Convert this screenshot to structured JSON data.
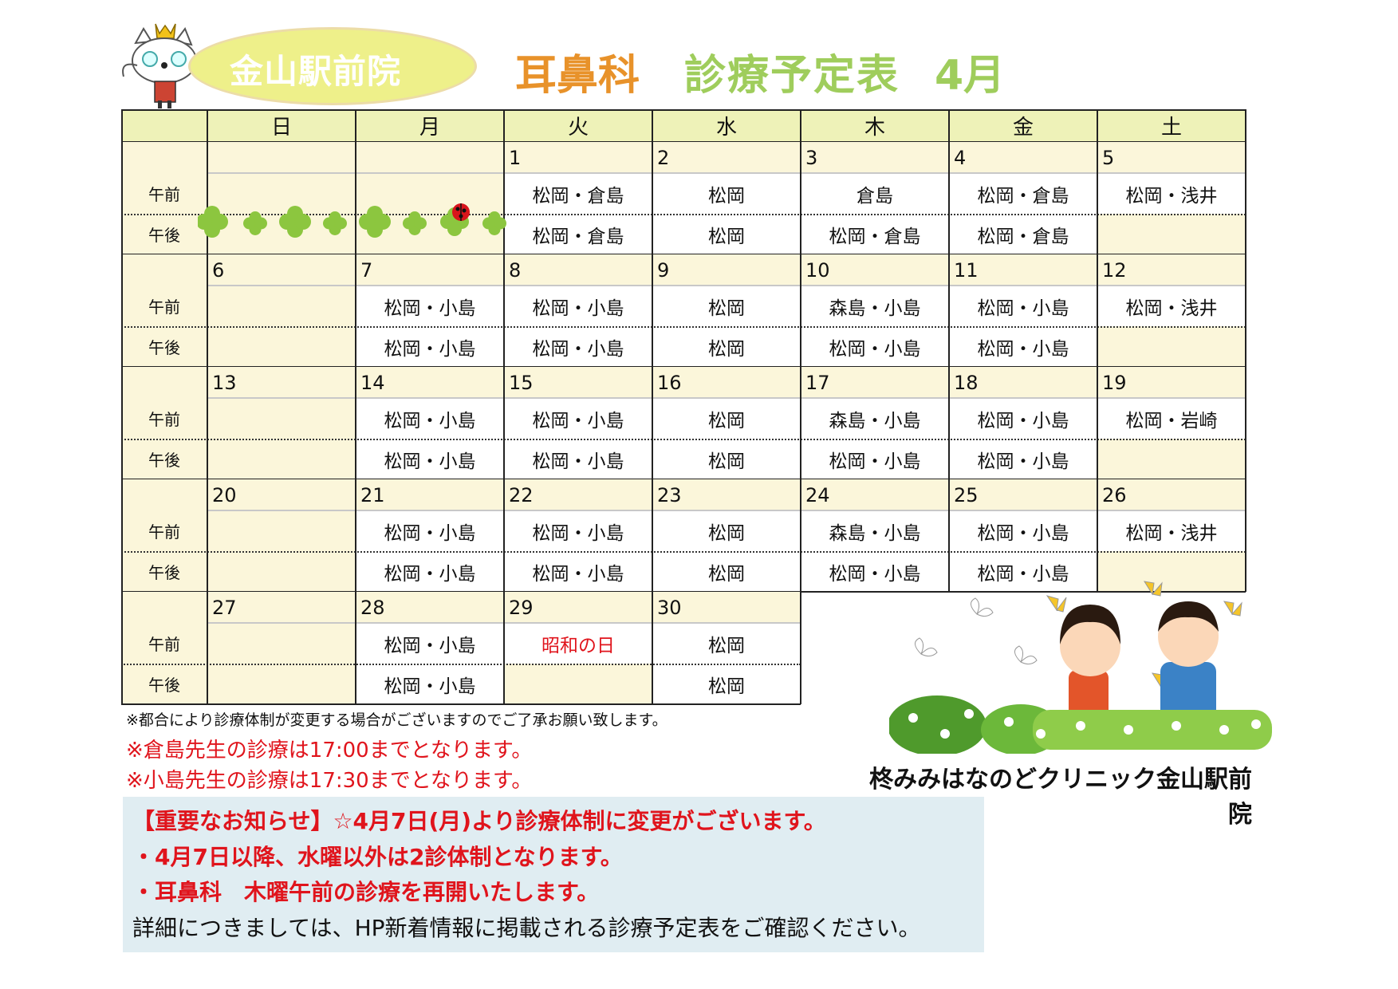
{
  "header": {
    "clinic_branch": "金山駅前院",
    "department": "耳鼻科",
    "title": "診療予定表",
    "month": "4月",
    "colors": {
      "department": "#e8922a",
      "title": "#9fcd5c",
      "branch_bubble": "#eef08a"
    }
  },
  "calendar": {
    "weekdays": [
      "日",
      "月",
      "火",
      "水",
      "木",
      "金",
      "土"
    ],
    "am_label": "午前",
    "pm_label": "午後",
    "weeks": [
      [
        {
          "date": "",
          "am": "",
          "pm": "",
          "decor": "clover"
        },
        {
          "date": "",
          "am": "",
          "pm": "",
          "decor": "clover"
        },
        {
          "date": "1",
          "am": "松岡・倉島",
          "pm": "松岡・倉島"
        },
        {
          "date": "2",
          "am": "松岡",
          "pm": "松岡"
        },
        {
          "date": "3",
          "am": "倉島",
          "pm": "松岡・倉島"
        },
        {
          "date": "4",
          "am": "松岡・倉島",
          "pm": "松岡・倉島"
        },
        {
          "date": "5",
          "am": "松岡・浅井",
          "pm": ""
        }
      ],
      [
        {
          "date": "6",
          "am": "",
          "pm": ""
        },
        {
          "date": "7",
          "am": "松岡・小島",
          "pm": "松岡・小島"
        },
        {
          "date": "8",
          "am": "松岡・小島",
          "pm": "松岡・小島"
        },
        {
          "date": "9",
          "am": "松岡",
          "pm": "松岡"
        },
        {
          "date": "10",
          "am": "森島・小島",
          "pm": "松岡・小島"
        },
        {
          "date": "11",
          "am": "松岡・小島",
          "pm": "松岡・小島"
        },
        {
          "date": "12",
          "am": "松岡・浅井",
          "pm": ""
        }
      ],
      [
        {
          "date": "13",
          "am": "",
          "pm": ""
        },
        {
          "date": "14",
          "am": "松岡・小島",
          "pm": "松岡・小島"
        },
        {
          "date": "15",
          "am": "松岡・小島",
          "pm": "松岡・小島"
        },
        {
          "date": "16",
          "am": "松岡",
          "pm": "松岡"
        },
        {
          "date": "17",
          "am": "森島・小島",
          "pm": "松岡・小島"
        },
        {
          "date": "18",
          "am": "松岡・小島",
          "pm": "松岡・小島"
        },
        {
          "date": "19",
          "am": "松岡・岩崎",
          "pm": ""
        }
      ],
      [
        {
          "date": "20",
          "am": "",
          "pm": ""
        },
        {
          "date": "21",
          "am": "松岡・小島",
          "pm": "松岡・小島"
        },
        {
          "date": "22",
          "am": "松岡・小島",
          "pm": "松岡・小島"
        },
        {
          "date": "23",
          "am": "松岡",
          "pm": "松岡"
        },
        {
          "date": "24",
          "am": "森島・小島",
          "pm": "松岡・小島"
        },
        {
          "date": "25",
          "am": "松岡・小島",
          "pm": "松岡・小島"
        },
        {
          "date": "26",
          "am": "松岡・浅井",
          "pm": ""
        }
      ],
      [
        {
          "date": "27",
          "am": "",
          "pm": ""
        },
        {
          "date": "28",
          "am": "松岡・小島",
          "pm": "松岡・小島"
        },
        {
          "date": "29",
          "am": "昭和の日",
          "pm": "",
          "holiday": true
        },
        {
          "date": "30",
          "am": "松岡",
          "pm": "松岡"
        }
      ]
    ]
  },
  "notes": [
    "※都合により診療体制が変更する場合がございますのでご了承お願い致します。",
    "※倉島先生の診療は17:00までとなります。",
    "※小島先生の診療は17:30までとなります。"
  ],
  "notice": {
    "line1": "【重要なお知らせ】☆4月7日(月)より診療体制に変更がございます。",
    "line2": "・4月7日以降、水曜以外は2診体制となります。",
    "line3": "・耳鼻科　木曜午前の診療を再開いたします。",
    "line4": "詳細につきましては、HP新着情報に掲載される診療予定表をご確認ください。"
  },
  "footer": {
    "clinic_full_name": "柊みみはなのどクリニック金山駅前院"
  },
  "colors": {
    "holiday": "#e0141c",
    "header_row": "#eef2b8",
    "date_row": "#fbf6da",
    "notice_bg": "#e0edf2"
  }
}
